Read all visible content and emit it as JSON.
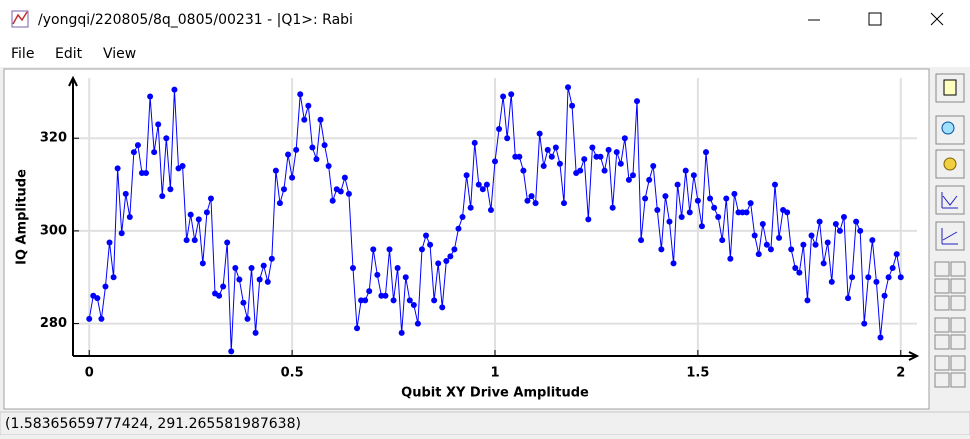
{
  "window_title": "/yongqi/220805/8q_0805/00231 - |Q1>: Rabi",
  "menu": [
    "File",
    "Edit",
    "View"
  ],
  "status": "(1.58365659777424, 291.265581987638)",
  "chart_data": {
    "type": "line",
    "xlabel": "Qubit XY Drive Amplitude",
    "ylabel": "IQ Amplitude",
    "x": [
      0,
      0.01,
      0.02,
      0.03,
      0.04,
      0.05,
      0.06,
      0.07,
      0.08,
      0.09,
      0.1,
      0.11,
      0.12,
      0.13,
      0.14,
      0.15,
      0.16,
      0.17,
      0.18,
      0.19,
      0.2,
      0.21,
      0.22,
      0.23,
      0.24,
      0.25,
      0.26,
      0.27,
      0.28,
      0.29,
      0.3,
      0.31,
      0.32,
      0.33,
      0.34,
      0.35,
      0.36,
      0.37,
      0.38,
      0.39,
      0.4,
      0.41,
      0.42,
      0.43,
      0.44,
      0.45,
      0.46,
      0.47,
      0.48,
      0.49,
      0.5,
      0.51,
      0.52,
      0.53,
      0.54,
      0.55,
      0.56,
      0.57,
      0.58,
      0.59,
      0.6,
      0.61,
      0.62,
      0.63,
      0.64,
      0.65,
      0.66,
      0.67,
      0.68,
      0.69,
      0.7,
      0.71,
      0.72,
      0.73,
      0.74,
      0.75,
      0.76,
      0.77,
      0.78,
      0.79,
      0.8,
      0.81,
      0.82,
      0.83,
      0.84,
      0.85,
      0.86,
      0.87,
      0.88,
      0.89,
      0.9,
      0.91,
      0.92,
      0.93,
      0.94,
      0.95,
      0.96,
      0.97,
      0.98,
      0.99,
      1,
      1.01,
      1.02,
      1.03,
      1.04,
      1.05,
      1.06,
      1.07,
      1.08,
      1.09,
      1.1,
      1.11,
      1.12,
      1.13,
      1.14,
      1.15,
      1.16,
      1.17,
      1.18,
      1.19,
      1.2,
      1.21,
      1.22,
      1.23,
      1.24,
      1.25,
      1.26,
      1.27,
      1.28,
      1.29,
      1.3,
      1.31,
      1.32,
      1.33,
      1.34,
      1.35,
      1.36,
      1.37,
      1.38,
      1.39,
      1.4,
      1.41,
      1.42,
      1.43,
      1.44,
      1.45,
      1.46,
      1.47,
      1.48,
      1.49,
      1.5,
      1.51,
      1.52,
      1.53,
      1.54,
      1.55,
      1.56,
      1.57,
      1.58,
      1.59,
      1.6,
      1.61,
      1.62,
      1.63,
      1.64,
      1.65,
      1.66,
      1.67,
      1.68,
      1.69,
      1.7,
      1.71,
      1.72,
      1.73,
      1.74,
      1.75,
      1.76,
      1.77,
      1.78,
      1.79,
      1.8,
      1.81,
      1.82,
      1.83,
      1.84,
      1.85,
      1.86,
      1.87,
      1.88,
      1.89,
      1.9,
      1.91,
      1.92,
      1.93,
      1.94,
      1.95,
      1.96,
      1.97,
      1.98,
      1.99,
      2
    ],
    "series": [
      {
        "color": "#0000ff",
        "values": [
          281,
          286,
          285.5,
          281,
          288,
          297.5,
          290,
          313.5,
          299.5,
          308,
          303,
          317,
          318.5,
          312.5,
          312.5,
          329,
          317,
          323,
          307.5,
          320,
          309,
          330.5,
          313.5,
          314,
          298,
          303.5,
          298,
          302.5,
          293,
          304,
          307,
          286.5,
          286,
          288,
          297.5,
          274,
          292,
          289.5,
          284.5,
          281,
          292,
          278,
          289.5,
          292.5,
          289,
          294,
          313,
          306,
          309,
          316.5,
          311.5,
          317.5,
          329.5,
          324,
          327,
          318,
          315.5,
          324,
          318.5,
          314,
          306.5,
          309,
          308.5,
          311.5,
          308,
          292,
          279,
          285,
          285,
          287,
          296,
          290.5,
          286,
          286,
          296,
          285,
          292,
          278,
          290,
          285,
          284,
          280,
          296,
          299,
          297,
          285,
          293,
          283.5,
          293.5,
          294.5,
          296,
          300.5,
          303,
          312,
          305,
          319,
          310,
          309,
          310,
          304.5,
          315,
          322,
          329,
          320,
          329.5,
          316,
          316,
          313,
          306.5,
          307.5,
          306,
          321,
          314,
          317.5,
          316,
          318,
          314.5,
          306,
          331,
          327,
          312.5,
          313,
          315.5,
          302.5,
          318,
          316,
          316,
          313,
          317.5,
          305,
          317,
          314.5,
          320,
          311,
          312,
          328,
          298,
          307,
          311,
          314,
          304.5,
          296,
          307.5,
          302,
          293,
          310,
          303,
          313,
          304,
          312,
          306.5,
          301,
          317,
          307,
          305,
          303,
          298,
          307,
          294,
          308,
          304,
          304,
          304,
          306,
          299,
          295,
          301.5,
          297,
          296,
          310,
          298.5,
          304.5,
          304,
          296,
          292,
          291,
          297,
          285,
          299,
          297,
          302,
          293,
          297.5,
          289,
          301.5,
          300,
          303,
          285.5,
          290,
          302,
          300,
          280,
          290,
          298,
          289,
          277,
          286,
          290,
          292,
          295,
          290
        ]
      }
    ],
    "xlim": [
      -0.04,
      2.04
    ],
    "ylim": [
      273,
      333
    ],
    "xticks": [
      0,
      0.5,
      1,
      1.5,
      2
    ],
    "yticks": [
      280,
      300,
      320
    ],
    "grid": true
  }
}
